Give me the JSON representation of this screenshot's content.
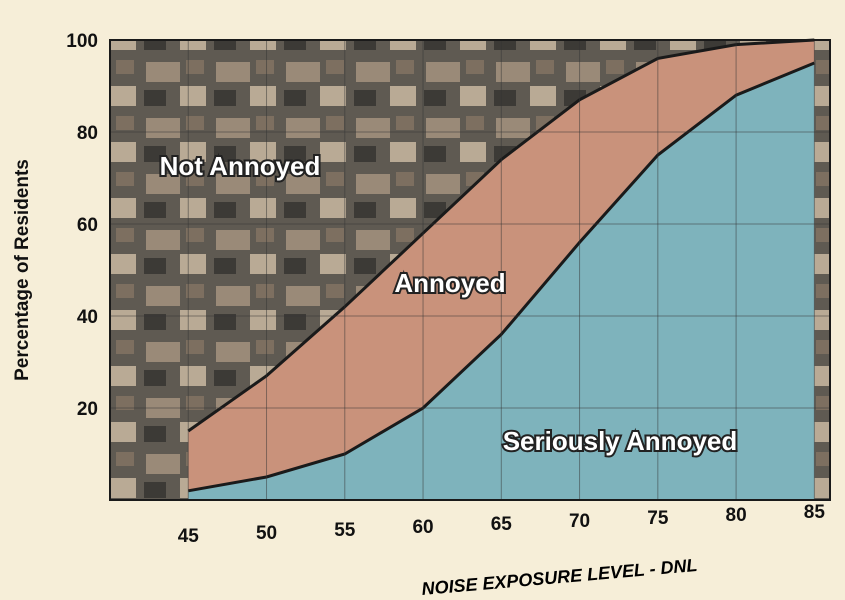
{
  "chart_data": {
    "type": "area",
    "x": [
      45,
      50,
      55,
      60,
      65,
      70,
      75,
      80,
      85
    ],
    "series": [
      {
        "name": "Annoyed",
        "color": "#c9927b",
        "values": [
          15,
          27,
          42,
          58,
          74,
          87,
          96,
          99,
          100
        ]
      },
      {
        "name": "Seriously Annoyed",
        "color": "#7eb3bc",
        "values": [
          2,
          5,
          10,
          20,
          36,
          56,
          75,
          88,
          95
        ]
      }
    ],
    "annotation": "Not Annoyed",
    "xlim": [
      40,
      86
    ],
    "xticks": [
      45,
      50,
      55,
      60,
      65,
      70,
      75,
      80,
      85
    ],
    "ylim": [
      0,
      100
    ],
    "yticks": [
      20,
      40,
      60,
      80,
      100
    ],
    "y_label": "Percentage of Residents",
    "x_label": "NOISE EXPOSURE LEVEL - DNL",
    "grid": true
  }
}
